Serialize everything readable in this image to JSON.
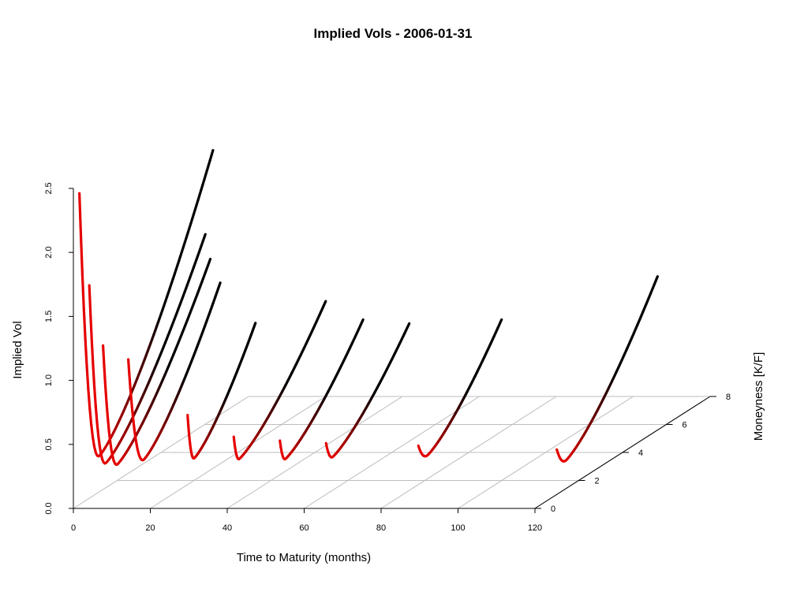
{
  "chart_data": {
    "type": "line",
    "title": "Implied Vols - 2006-01-31",
    "xlabel": "Time to Maturity (months)",
    "ylabel": "Implied Vol",
    "zlabel": "Moneyness [K/F]",
    "xlim": [
      0,
      120
    ],
    "ylim": [
      0,
      2.5
    ],
    "zlim": [
      0,
      8
    ],
    "x_ticks": [
      "0",
      "20",
      "40",
      "60",
      "80",
      "100",
      "120"
    ],
    "y_ticks": [
      "0.0",
      "0.5",
      "1.0",
      "1.5",
      "2.0",
      "2.5"
    ],
    "z_ticks": [
      "0",
      "2",
      "4",
      "6",
      "8"
    ],
    "grid": true,
    "colors": {
      "low": "#e60000",
      "high": "#000000",
      "grid": "#bebebe",
      "axis": "#000000"
    },
    "series": [
      {
        "maturity": 1,
        "moneyness_start": 0.1,
        "vol_start": 2.45,
        "moneyness_min": 1.0,
        "vol_min": 0.3,
        "moneyness_end": 6.2,
        "vol_end": 2.12
      },
      {
        "maturity": 3,
        "moneyness_start": 0.2,
        "vol_start": 1.72,
        "moneyness_min": 0.95,
        "vol_min": 0.25,
        "moneyness_end": 5.5,
        "vol_end": 1.54
      },
      {
        "maturity": 6,
        "moneyness_start": 0.3,
        "vol_start": 1.24,
        "moneyness_min": 0.95,
        "vol_min": 0.24,
        "moneyness_end": 5.2,
        "vol_end": 1.38
      },
      {
        "maturity": 12,
        "moneyness_start": 0.4,
        "vol_start": 1.12,
        "moneyness_min": 1.1,
        "vol_min": 0.26,
        "moneyness_end": 4.6,
        "vol_end": 1.26
      },
      {
        "maturity": 24,
        "moneyness_start": 1.0,
        "vol_start": 0.62,
        "moneyness_min": 1.3,
        "vol_min": 0.25,
        "moneyness_end": 4.1,
        "vol_end": 1.0
      },
      {
        "maturity": 36,
        "moneyness_start": 1.0,
        "vol_start": 0.45,
        "moneyness_min": 1.25,
        "vol_min": 0.25,
        "moneyness_end": 5.2,
        "vol_end": 1.05
      },
      {
        "maturity": 48,
        "moneyness_start": 1.0,
        "vol_start": 0.42,
        "moneyness_min": 1.25,
        "vol_min": 0.25,
        "moneyness_end": 4.8,
        "vol_end": 0.95
      },
      {
        "maturity": 60,
        "moneyness_start": 1.0,
        "vol_start": 0.4,
        "moneyness_min": 1.3,
        "vol_min": 0.26,
        "moneyness_end": 4.8,
        "vol_end": 0.92
      },
      {
        "maturity": 84,
        "moneyness_start": 1.0,
        "vol_start": 0.38,
        "moneyness_min": 1.4,
        "vol_min": 0.26,
        "moneyness_end": 4.8,
        "vol_end": 0.95
      },
      {
        "maturity": 120,
        "moneyness_start": 1.0,
        "vol_start": 0.35,
        "moneyness_min": 1.4,
        "vol_min": 0.22,
        "moneyness_end": 5.6,
        "vol_end": 1.2
      }
    ]
  }
}
